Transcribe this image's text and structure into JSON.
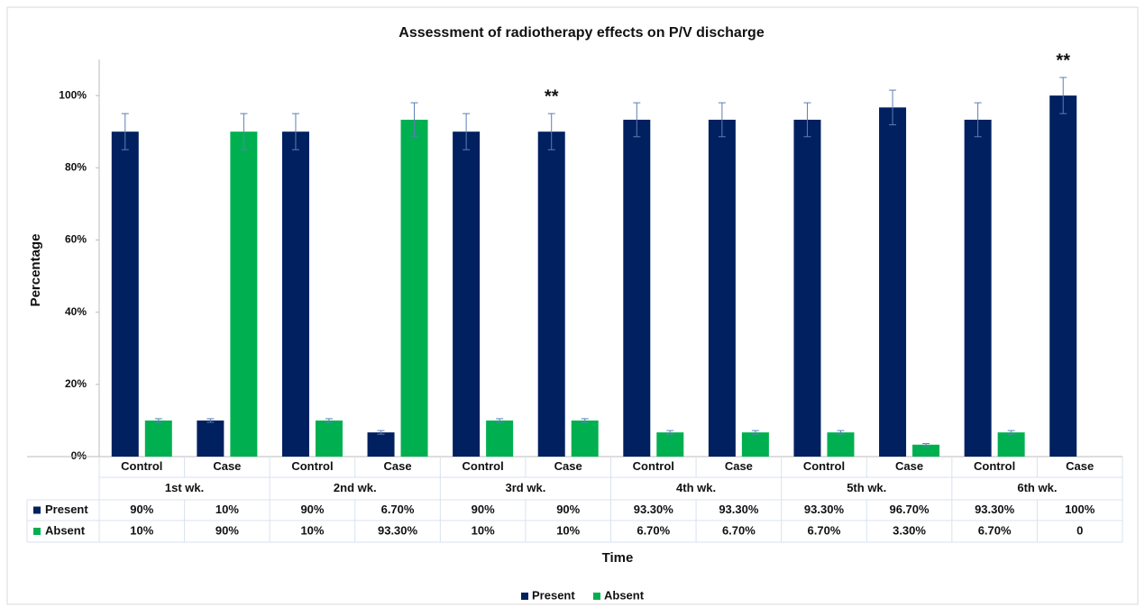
{
  "chart_data": {
    "type": "bar",
    "title": "Assessment of radiotherapy  effects on P/V discharge",
    "y_label": "Percentage",
    "x_label": "Time",
    "categories": [
      "Control",
      "Case",
      "Control",
      "Case",
      "Control",
      "Case",
      "Control",
      "Case",
      "Control",
      "Case",
      "Control",
      "Case"
    ],
    "groups": [
      "1st wk.",
      "2nd wk.",
      "3rd wk.",
      "4th wk.",
      "5th wk.",
      "6th wk."
    ],
    "series": [
      {
        "name": "Present",
        "color": "#002060",
        "values": [
          90,
          10,
          90,
          6.7,
          90,
          90,
          93.3,
          93.3,
          93.3,
          96.7,
          93.3,
          100
        ],
        "value_labels": [
          "90%",
          "10%",
          "90%",
          "6.70%",
          "90%",
          "90%",
          "93.30%",
          "93.30%",
          "93.30%",
          "96.70%",
          "93.30%",
          "100%"
        ],
        "errors": [
          5,
          0.5,
          5,
          0.5,
          5,
          5,
          4.7,
          4.7,
          4.7,
          4.8,
          4.7,
          5
        ]
      },
      {
        "name": "Absent",
        "color": "#00b050",
        "values": [
          10,
          90,
          10,
          93.3,
          10,
          10,
          6.7,
          6.7,
          6.7,
          3.3,
          6.7,
          0
        ],
        "value_labels": [
          "10%",
          "90%",
          "10%",
          "93.30%",
          "10%",
          "10%",
          "6.70%",
          "6.70%",
          "6.70%",
          "3.30%",
          "6.70%",
          "0"
        ],
        "errors": [
          0.5,
          5,
          0.5,
          4.7,
          0.5,
          0.5,
          0.5,
          0.5,
          0.5,
          0.3,
          0.5,
          0
        ]
      }
    ],
    "annotations": [
      {
        "text": "**",
        "index": 5
      },
      {
        "text": "**",
        "index": 11
      }
    ],
    "ylim": [
      0,
      110
    ],
    "yticks": [
      {
        "value": 0,
        "label": "0%"
      },
      {
        "value": 20,
        "label": "20%"
      },
      {
        "value": 40,
        "label": "40%"
      },
      {
        "value": 60,
        "label": "60%"
      },
      {
        "value": 80,
        "label": "80%"
      },
      {
        "value": 100,
        "label": "100%"
      }
    ],
    "grid": false
  }
}
